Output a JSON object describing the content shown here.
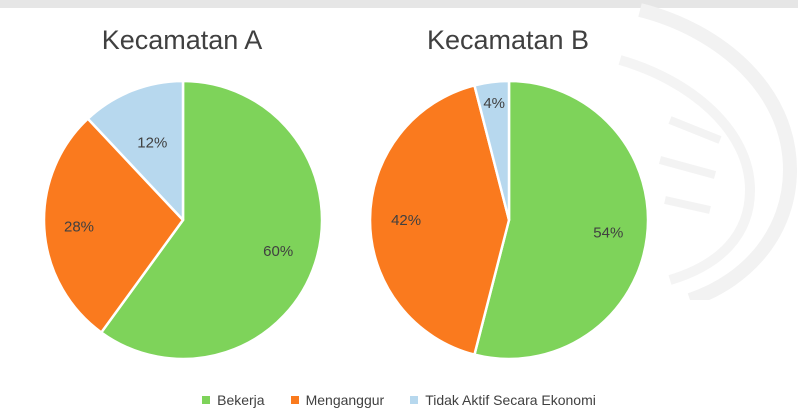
{
  "chart_data": [
    {
      "type": "pie",
      "title": "Kecamatan A",
      "categories": [
        "Bekerja",
        "Menganggur",
        "Tidak Aktif Secara Ekonomi"
      ],
      "values": [
        60,
        28,
        12
      ],
      "data_labels": [
        "60%",
        "28%",
        "12%"
      ],
      "colors": [
        "#7ed35a",
        "#fa7a1e",
        "#b7d8ee"
      ],
      "legend": "bottom"
    },
    {
      "type": "pie",
      "title": "Kecamatan B",
      "categories": [
        "Bekerja",
        "Menganggur",
        "Tidak Aktif Secara Ekonomi"
      ],
      "values": [
        54,
        42,
        4
      ],
      "data_labels": [
        "54%",
        "42%",
        "4%"
      ],
      "colors": [
        "#7ed35a",
        "#fa7a1e",
        "#b7d8ee"
      ],
      "legend": "bottom"
    }
  ],
  "legend": {
    "items": [
      {
        "label": "Bekerja",
        "color": "#7ed35a"
      },
      {
        "label": "Menganggur",
        "color": "#fa7a1e"
      },
      {
        "label": "Tidak Aktif Secara Ekonomi",
        "color": "#b7d8ee"
      }
    ]
  }
}
